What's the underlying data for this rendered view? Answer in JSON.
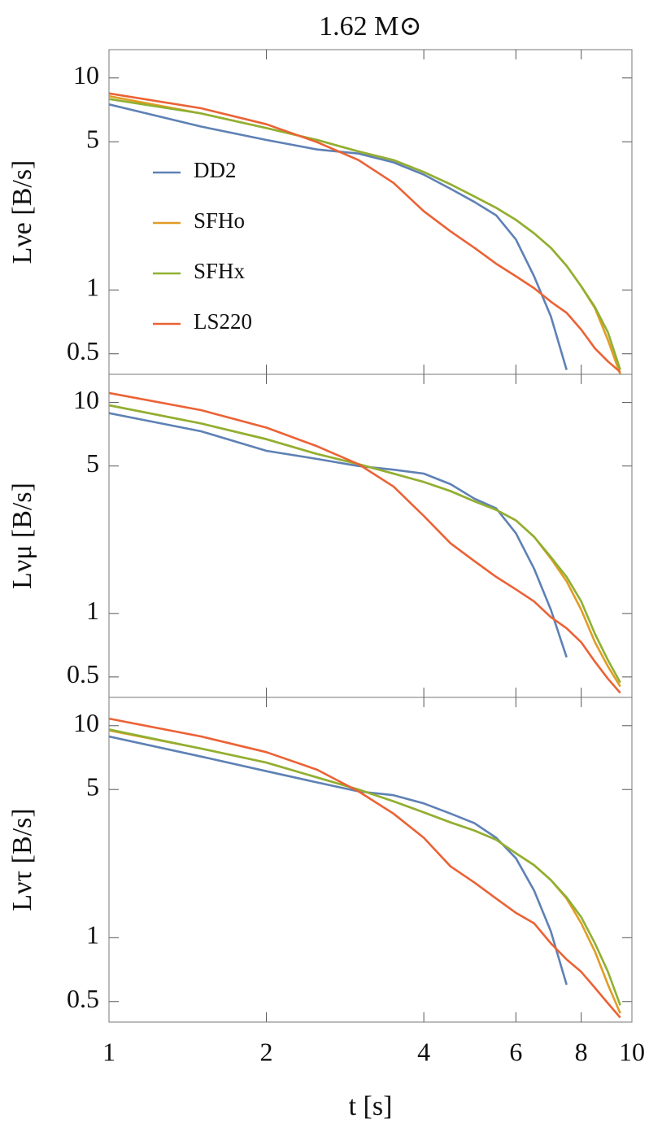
{
  "chart_data": [
    {
      "type": "line",
      "title": "1.62 M⊙",
      "ylabel": "Lνe [B/s]",
      "xscale": "log",
      "yscale": "log",
      "legend": "center left",
      "x": [
        1,
        1.5,
        2,
        2.5,
        3,
        3.5,
        4,
        4.5,
        5,
        5.5,
        6,
        6.5,
        7,
        7.5,
        8,
        8.5,
        9,
        9.5,
        10
      ],
      "xlim": [
        1,
        10
      ],
      "ylim": [
        0.4,
        13.6
      ],
      "yticks": [
        0.5,
        1,
        5,
        10
      ],
      "series": [
        {
          "name": "DD2",
          "color": "#5e81b5",
          "values": [
            7.5,
            5.9,
            5.1,
            4.6,
            4.4,
            4.0,
            3.5,
            3.0,
            2.6,
            2.25,
            1.73,
            1.16,
            0.75,
            0.42,
            null,
            null,
            null,
            null,
            null
          ]
        },
        {
          "name": "SFHo",
          "color": "#e19c24",
          "values": [
            8.2,
            6.8,
            5.8,
            5.1,
            4.5,
            4.1,
            3.6,
            3.15,
            2.76,
            2.44,
            2.14,
            1.85,
            1.58,
            1.3,
            1.04,
            0.82,
            0.58,
            0.4,
            null
          ]
        },
        {
          "name": "SFHx",
          "color": "#8fb032",
          "values": [
            7.95,
            6.8,
            5.8,
            5.1,
            4.5,
            4.1,
            3.6,
            3.15,
            2.76,
            2.44,
            2.14,
            1.85,
            1.58,
            1.3,
            1.04,
            0.83,
            0.63,
            0.42,
            null
          ]
        },
        {
          "name": "LS220",
          "color": "#eb6235",
          "values": [
            8.45,
            7.2,
            6.05,
            4.98,
            4.1,
            3.2,
            2.35,
            1.89,
            1.58,
            1.33,
            1.16,
            1.02,
            0.88,
            0.78,
            0.65,
            0.53,
            0.46,
            0.41,
            null
          ]
        }
      ]
    },
    {
      "type": "line",
      "ylabel": "Lνμ [B/s]",
      "xscale": "log",
      "yscale": "log",
      "x": [
        1,
        1.5,
        2,
        2.5,
        3,
        3.5,
        4,
        4.5,
        5,
        5.5,
        6,
        6.5,
        7,
        7.5,
        8,
        8.5,
        9,
        9.5,
        10
      ],
      "xlim": [
        1,
        10
      ],
      "ylim": [
        0.4,
        13.6
      ],
      "yticks": [
        0.5,
        1,
        5,
        10
      ],
      "series": [
        {
          "color": "#5e81b5",
          "values": [
            8.9,
            7.3,
            5.9,
            5.4,
            5.0,
            4.8,
            4.6,
            4.1,
            3.5,
            3.15,
            2.4,
            1.63,
            1.04,
            0.62,
            null,
            null,
            null,
            null,
            null
          ]
        },
        {
          "color": "#e19c24",
          "values": [
            9.7,
            7.95,
            6.7,
            5.7,
            5.1,
            4.6,
            4.2,
            3.8,
            3.4,
            3.1,
            2.76,
            2.31,
            1.82,
            1.42,
            1.04,
            0.73,
            0.56,
            0.45,
            null
          ]
        },
        {
          "color": "#8fb032",
          "values": [
            9.7,
            7.95,
            6.7,
            5.7,
            5.1,
            4.6,
            4.2,
            3.8,
            3.4,
            3.1,
            2.76,
            2.31,
            1.85,
            1.49,
            1.14,
            0.8,
            0.6,
            0.47,
            null
          ]
        },
        {
          "color": "#eb6235",
          "values": [
            11.1,
            9.2,
            7.6,
            6.2,
            5.1,
            4.0,
            2.9,
            2.15,
            1.77,
            1.49,
            1.3,
            1.14,
            0.96,
            0.85,
            0.73,
            0.59,
            0.49,
            0.42,
            null
          ]
        }
      ]
    },
    {
      "type": "line",
      "ylabel": "Lντ [B/s]",
      "xlabel": "t [s]",
      "xscale": "log",
      "yscale": "log",
      "x": [
        1,
        1.5,
        2,
        2.5,
        3,
        3.5,
        4,
        4.5,
        5,
        5.5,
        6,
        6.5,
        7,
        7.5,
        8,
        8.5,
        9,
        9.5,
        10
      ],
      "xlim": [
        1,
        10
      ],
      "ylim": [
        0.4,
        13.6
      ],
      "xticks": [
        1,
        2,
        4,
        6,
        8,
        10
      ],
      "yticks": [
        0.5,
        1,
        5,
        10
      ],
      "series": [
        {
          "color": "#5e81b5",
          "values": [
            8.9,
            7.15,
            6.1,
            5.4,
            4.9,
            4.7,
            4.3,
            3.85,
            3.47,
            2.96,
            2.37,
            1.67,
            1.07,
            0.6,
            null,
            null,
            null,
            null,
            null
          ]
        },
        {
          "color": "#e19c24",
          "values": [
            9.5,
            7.8,
            6.7,
            5.7,
            5.0,
            4.4,
            3.9,
            3.5,
            3.2,
            2.9,
            2.5,
            2.2,
            1.87,
            1.53,
            1.17,
            0.86,
            0.6,
            0.44,
            null
          ]
        },
        {
          "color": "#8fb032",
          "values": [
            9.6,
            7.8,
            6.7,
            5.7,
            5.0,
            4.4,
            3.9,
            3.5,
            3.2,
            2.9,
            2.5,
            2.2,
            1.87,
            1.55,
            1.25,
            0.94,
            0.69,
            0.48,
            null
          ]
        },
        {
          "color": "#eb6235",
          "values": [
            10.8,
            8.9,
            7.5,
            6.2,
            4.9,
            3.85,
            2.96,
            2.17,
            1.82,
            1.53,
            1.31,
            1.17,
            0.94,
            0.79,
            0.69,
            0.58,
            0.49,
            0.42,
            null
          ]
        }
      ]
    }
  ]
}
